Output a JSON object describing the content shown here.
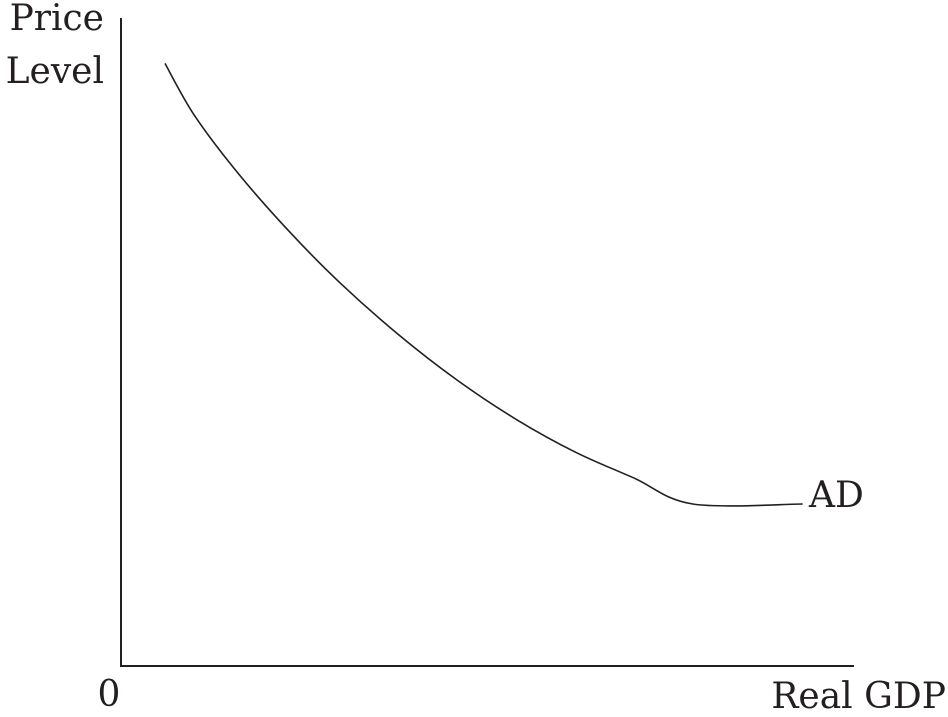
{
  "chart_data": {
    "type": "line",
    "xlabel": "Real GDP",
    "ylabel": "Price\nLevel",
    "origin_label": "0",
    "xlim": [
      0,
      10
    ],
    "ylim": [
      0,
      10
    ],
    "grid": false,
    "legend": "none",
    "series": [
      {
        "name": "AD",
        "x": [
          0.6,
          1.0,
          1.6,
          2.3,
          3.0,
          3.8,
          4.6,
          5.4,
          6.2,
          7.0,
          7.8,
          9.3
        ],
        "y": [
          9.3,
          8.5,
          7.6,
          6.7,
          5.9,
          5.1,
          4.4,
          3.8,
          3.3,
          2.9,
          2.5,
          2.5
        ]
      }
    ],
    "colors": {
      "axis": "#231f20",
      "curve": "#231f20"
    }
  }
}
